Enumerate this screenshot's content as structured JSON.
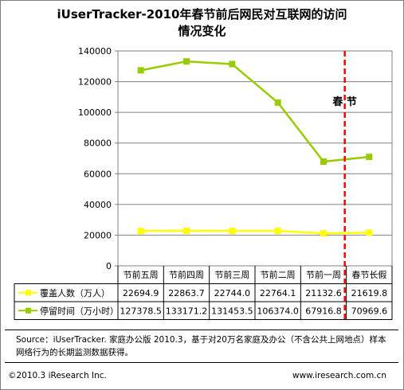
{
  "title_lines": [
    "iUserTracker-2010年春节前后网民对互联网的访问",
    "情况变化"
  ],
  "annotation": "春 节",
  "chart_data": {
    "type": "line",
    "title": "iUserTracker-2010年春节前后网民对互联网的访问情况变化",
    "categories": [
      "节前五周",
      "节前四周",
      "节前三周",
      "节前二周",
      "节前一周",
      "春节长假"
    ],
    "ylim": [
      0,
      140000
    ],
    "yticks": [
      0,
      20000,
      40000,
      60000,
      80000,
      100000,
      120000,
      140000
    ],
    "grid": true,
    "series": [
      {
        "name": "覆盖人数（万人）",
        "color": "#ffff00",
        "values": [
          22694.9,
          22863.7,
          22744.0,
          22764.1,
          21132.6,
          21619.8
        ],
        "labels": [
          "22694.9",
          "22863.7",
          "22744.0",
          "22764.1",
          "21132.6",
          "21619.8"
        ]
      },
      {
        "name": "停留时间（万小时）",
        "color": "#99cc00",
        "values": [
          127378.5,
          133171.2,
          131453.5,
          106374.0,
          67916.8,
          70969.6
        ],
        "labels": [
          "127378.5",
          "133171.2",
          "131453.5",
          "106374.0",
          "67916.8",
          "70969.6"
        ]
      }
    ],
    "marker_line_color": "#ff0000"
  },
  "source": "Source：iUserTracker. 家庭办公版 2010.3，基于对20万名家庭及办公（不含公共上网地点）样本网络行为的长期监测数据获得。",
  "copyright": "©2010.3 iResearch Inc.",
  "website": "www.iresearch.com.cn"
}
